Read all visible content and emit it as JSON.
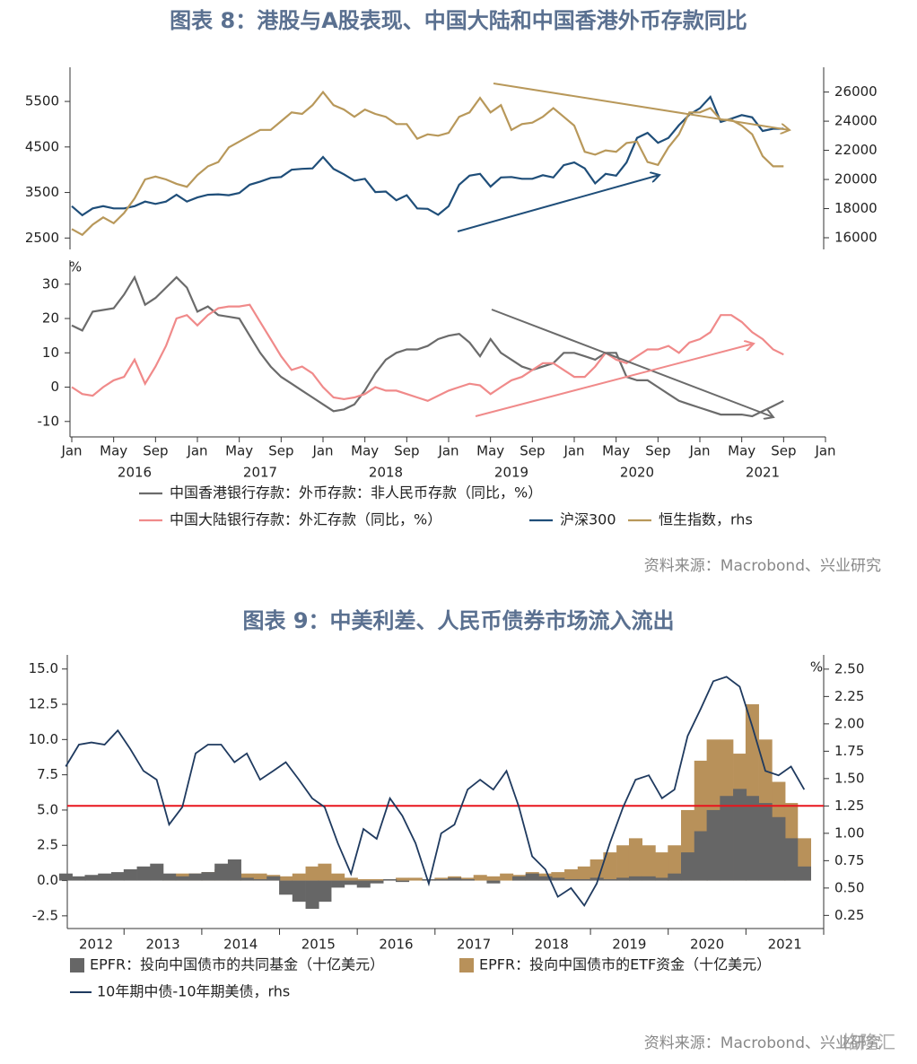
{
  "chart_data": [
    {
      "type": "line",
      "title": "图表 8：港股与A股表现、中国大陆和中国香港外币存款同比",
      "x": [
        "2016-01",
        "2016-02",
        "2016-03",
        "2016-04",
        "2016-05",
        "2016-06",
        "2016-07",
        "2016-08",
        "2016-09",
        "2016-10",
        "2016-11",
        "2016-12",
        "2017-01",
        "2017-02",
        "2017-03",
        "2017-04",
        "2017-05",
        "2017-06",
        "2017-07",
        "2017-08",
        "2017-09",
        "2017-10",
        "2017-11",
        "2017-12",
        "2018-01",
        "2018-02",
        "2018-03",
        "2018-04",
        "2018-05",
        "2018-06",
        "2018-07",
        "2018-08",
        "2018-09",
        "2018-10",
        "2018-11",
        "2018-12",
        "2019-01",
        "2019-02",
        "2019-03",
        "2019-04",
        "2019-05",
        "2019-06",
        "2019-07",
        "2019-08",
        "2019-09",
        "2019-10",
        "2019-11",
        "2019-12",
        "2020-01",
        "2020-02",
        "2020-03",
        "2020-04",
        "2020-05",
        "2020-06",
        "2020-07",
        "2020-08",
        "2020-09",
        "2020-10",
        "2020-11",
        "2020-12",
        "2021-01",
        "2021-02",
        "2021-03",
        "2021-04",
        "2021-05",
        "2021-06",
        "2021-07",
        "2021-08",
        "2021-09"
      ],
      "xlim": [
        "2016-01",
        "2022-01"
      ],
      "xticks": [
        {
          "value": "2016-01",
          "label": "Jan"
        },
        {
          "value": "2016-05",
          "label": "May"
        },
        {
          "value": "2016-09",
          "label": "Sep"
        },
        {
          "value": "2017-01",
          "label": "Jan"
        },
        {
          "value": "2017-05",
          "label": "May"
        },
        {
          "value": "2017-09",
          "label": "Sep"
        },
        {
          "value": "2018-01",
          "label": "Jan"
        },
        {
          "value": "2018-05",
          "label": "May"
        },
        {
          "value": "2018-09",
          "label": "Sep"
        },
        {
          "value": "2019-01",
          "label": "Jan"
        },
        {
          "value": "2019-05",
          "label": "May"
        },
        {
          "value": "2019-09",
          "label": "Sep"
        },
        {
          "value": "2020-01",
          "label": "Jan"
        },
        {
          "value": "2020-05",
          "label": "May"
        },
        {
          "value": "2020-09",
          "label": "Sep"
        },
        {
          "value": "2021-01",
          "label": "Jan"
        },
        {
          "value": "2021-05",
          "label": "May"
        },
        {
          "value": "2021-09",
          "label": "Sep"
        },
        {
          "value": "2022-01",
          "label": "Jan"
        }
      ],
      "xyears": [
        {
          "value": "2016-07",
          "label": "2016"
        },
        {
          "value": "2017-07",
          "label": "2017"
        },
        {
          "value": "2018-07",
          "label": "2018"
        },
        {
          "value": "2019-07",
          "label": "2019"
        },
        {
          "value": "2020-07",
          "label": "2020"
        },
        {
          "value": "2021-07",
          "label": "2021"
        }
      ],
      "panels": [
        {
          "ylim": [
            2250,
            6250
          ],
          "yticks": [
            2500,
            3500,
            4500,
            5500
          ],
          "y2lim": [
            15200,
            27700
          ],
          "y2ticks": [
            16000,
            18000,
            20000,
            22000,
            24000,
            26000
          ],
          "series": [
            {
              "name": "沪深300",
              "color": "#1f4e79",
              "values": [
                3200,
                3000,
                3150,
                3200,
                3150,
                3150,
                3200,
                3300,
                3250,
                3300,
                3450,
                3300,
                3390,
                3450,
                3460,
                3440,
                3490,
                3670,
                3740,
                3820,
                3840,
                4000,
                4020,
                4030,
                4280,
                4020,
                3900,
                3760,
                3800,
                3510,
                3520,
                3330,
                3440,
                3150,
                3140,
                3010,
                3200,
                3670,
                3870,
                3910,
                3630,
                3830,
                3840,
                3800,
                3800,
                3880,
                3830,
                4100,
                4160,
                4030,
                3700,
                3910,
                3870,
                4160,
                4700,
                4810,
                4590,
                4700,
                4980,
                5210,
                5350,
                5600,
                5050,
                5120,
                5200,
                5150,
                4850,
                4900,
                4900
              ]
            },
            {
              "name": "恒生指数，rhs",
              "color": "#b8985a",
              "axis": "y2",
              "values": [
                16600,
                16200,
                16900,
                17400,
                17000,
                17700,
                18700,
                20000,
                20200,
                20000,
                19700,
                19500,
                20300,
                20900,
                21200,
                22200,
                22600,
                23000,
                23400,
                23400,
                24000,
                24600,
                24500,
                25100,
                26000,
                25100,
                24800,
                24300,
                24800,
                24500,
                24300,
                23800,
                23800,
                22800,
                23100,
                23000,
                23200,
                24300,
                24600,
                25600,
                24600,
                25100,
                23400,
                23800,
                23900,
                24300,
                24900,
                24300,
                23700,
                21900,
                21700,
                22000,
                21900,
                22500,
                22600,
                21200,
                21000,
                22200,
                23100,
                24600,
                24600,
                24900,
                24100,
                24100,
                23700,
                23100,
                21600,
                20900,
                20900
              ]
            }
          ]
        },
        {
          "ylabel": "%",
          "ylim": [
            -14.5,
            37
          ],
          "yticks": [
            -10,
            0,
            10,
            20,
            30
          ],
          "series": [
            {
              "name": "中国香港银行存款：外币存款：非人民币存款（同比，%）",
              "color": "#6b6b6b",
              "values": [
                18,
                16.5,
                22,
                22.5,
                23,
                27,
                32,
                24,
                26,
                29,
                32,
                29,
                22,
                23.5,
                21,
                20.5,
                20,
                15,
                10,
                6,
                3,
                1,
                -1,
                -3,
                -5,
                -7,
                -6.5,
                -5,
                -1,
                4,
                8,
                10,
                11,
                11,
                12,
                14,
                15,
                15.5,
                13,
                9,
                14,
                10,
                8,
                6,
                5,
                6,
                7,
                10,
                10,
                9,
                8,
                10,
                10,
                3,
                2,
                2,
                0,
                -2,
                -4,
                -5,
                -6,
                -7,
                -8,
                -8,
                -8,
                -8.5,
                -7,
                -5.5,
                -4
              ]
            },
            {
              "name": "中国大陆银行存款：外汇存款（同比，%）",
              "color": "#f08a8a",
              "values": [
                0,
                -2,
                -2.5,
                0,
                2,
                3,
                8,
                1,
                6,
                12,
                20,
                21,
                18,
                21,
                23,
                23.5,
                23.5,
                24,
                19,
                14,
                9,
                5,
                6,
                4,
                0,
                -3,
                -3.5,
                -3,
                -2,
                0,
                -1,
                -1,
                -2,
                -3,
                -4,
                -2.5,
                -1,
                0,
                1,
                0.5,
                -2,
                0,
                2,
                3,
                5,
                7,
                7,
                5,
                3,
                3,
                6,
                10,
                8,
                7,
                9,
                11,
                11,
                12,
                10,
                13,
                14,
                16,
                21,
                21,
                19,
                16,
                14,
                11,
                9.5
              ]
            }
          ]
        }
      ],
      "source": "资料来源：Macrobond、兴业研究"
    },
    {
      "type": "bar",
      "title": "图表 9：中美利差、人民币债券市场流入流出",
      "x": [
        2012.25,
        2012.42,
        2012.58,
        2012.75,
        2012.92,
        2013.08,
        2013.25,
        2013.42,
        2013.58,
        2013.75,
        2013.92,
        2014.08,
        2014.25,
        2014.42,
        2014.58,
        2014.75,
        2014.92,
        2015.08,
        2015.25,
        2015.42,
        2015.58,
        2015.75,
        2015.92,
        2016.08,
        2016.25,
        2016.42,
        2016.58,
        2016.75,
        2016.92,
        2017.08,
        2017.25,
        2017.42,
        2017.58,
        2017.75,
        2017.92,
        2018.08,
        2018.25,
        2018.42,
        2018.58,
        2018.75,
        2018.92,
        2019.08,
        2019.25,
        2019.42,
        2019.58,
        2019.75,
        2019.92,
        2020.08,
        2020.25,
        2020.42,
        2020.58,
        2020.75,
        2020.92,
        2021.08,
        2021.25,
        2021.42,
        2021.58,
        2021.75
      ],
      "xlim": [
        2012.27,
        2022
      ],
      "xticks": [
        {
          "value": 2012.64,
          "label": "2012"
        },
        {
          "value": 2013.5,
          "label": "2013"
        },
        {
          "value": 2014.5,
          "label": "2014"
        },
        {
          "value": 2015.5,
          "label": "2015"
        },
        {
          "value": 2016.5,
          "label": "2016"
        },
        {
          "value": 2017.5,
          "label": "2017"
        },
        {
          "value": 2018.5,
          "label": "2018"
        },
        {
          "value": 2019.5,
          "label": "2019"
        },
        {
          "value": 2020.5,
          "label": "2020"
        },
        {
          "value": 2021.5,
          "label": "2021"
        }
      ],
      "ylim": [
        -3.4,
        16
      ],
      "yticks": [
        -2.5,
        {
          "value": 0,
          "label": "0.0"
        },
        2.5,
        {
          "value": 5,
          "label": "5.0"
        },
        7.5,
        {
          "value": 10,
          "label": "10.0"
        },
        12.5,
        {
          "value": 15,
          "label": "15.0"
        }
      ],
      "y2label": "%",
      "y2lim": [
        0.13,
        2.63
      ],
      "y2ticks": [
        0.25,
        {
          "value": 0.5,
          "label": "0.50"
        },
        0.75,
        {
          "value": 1,
          "label": "1.00"
        },
        1.25,
        {
          "value": 1.5,
          "label": "1.50"
        },
        1.75,
        {
          "value": 2,
          "label": "2.00"
        },
        2.25,
        {
          "value": 2.5,
          "label": "2.50"
        }
      ],
      "series": [
        {
          "name": "EPFR：投向中国债市的共同基金（十亿美元）",
          "color": "#666666",
          "type": "bar",
          "values": [
            0.5,
            0.3,
            0.4,
            0.5,
            0.6,
            0.8,
            1.0,
            1.2,
            0.5,
            0.3,
            0.5,
            0.6,
            1.2,
            1.5,
            0.2,
            0.1,
            0.3,
            -1.0,
            -1.5,
            -2.0,
            -1.5,
            -0.5,
            -0.3,
            -0.5,
            -0.2,
            0.1,
            -0.1,
            0,
            0.1,
            0.1,
            0.2,
            0.1,
            0,
            -0.2,
            0,
            0.3,
            0.5,
            0.3,
            0.2,
            0.1,
            0.1,
            0.2,
            0.1,
            0.2,
            0.3,
            0.3,
            0.2,
            0.5,
            2.0,
            3.5,
            5.0,
            6.0,
            6.5,
            6.0,
            5.5,
            4.5,
            3.0,
            1.0
          ]
        },
        {
          "name": "EPFR：投向中国债市的ETF资金（十亿美元）",
          "color": "#b8915a",
          "type": "bar",
          "values": [
            0,
            0,
            0,
            0,
            0,
            0,
            0,
            0,
            0.3,
            0.5,
            0.5,
            0.6,
            0.8,
            0.7,
            0.5,
            0.5,
            0.4,
            0.3,
            0.5,
            1.0,
            1.2,
            0.5,
            0.2,
            0.1,
            0.1,
            0.1,
            0.2,
            0.2,
            0.1,
            0.2,
            0.3,
            0.2,
            0.4,
            0.3,
            0.5,
            0.4,
            0.6,
            0.5,
            0.6,
            0.8,
            1.0,
            1.5,
            2.0,
            2.5,
            3.0,
            2.5,
            2.0,
            2.5,
            5.0,
            8.5,
            10.0,
            10.0,
            9.0,
            12.5,
            10.0,
            7.0,
            5.5,
            3.0
          ]
        },
        {
          "name": "10年期中债-10年期美债，rhs",
          "color": "#1f3a5f",
          "type": "line",
          "axis": "y2",
          "values": [
            1.61,
            1.81,
            1.83,
            1.81,
            1.94,
            1.77,
            1.57,
            1.49,
            1.08,
            1.24,
            1.73,
            1.81,
            1.81,
            1.65,
            1.73,
            1.49,
            1.57,
            1.65,
            1.49,
            1.32,
            1.24,
            0.91,
            0.63,
            1.04,
            0.95,
            1.32,
            1.16,
            0.91,
            0.54,
            1.0,
            1.08,
            1.4,
            1.49,
            1.4,
            1.57,
            1.24,
            0.79,
            0.67,
            0.42,
            0.5,
            0.34,
            0.54,
            0.91,
            1.24,
            1.49,
            1.53,
            1.32,
            1.4,
            1.89,
            2.14,
            2.39,
            2.43,
            2.34,
            1.98,
            1.57,
            1.53,
            1.61,
            1.4
          ]
        }
      ],
      "reference_line": {
        "value": 5.3,
        "color": "#e8141c"
      },
      "source": "资料来源：Macrobond、兴业研究",
      "watermark": "格隆汇"
    }
  ]
}
